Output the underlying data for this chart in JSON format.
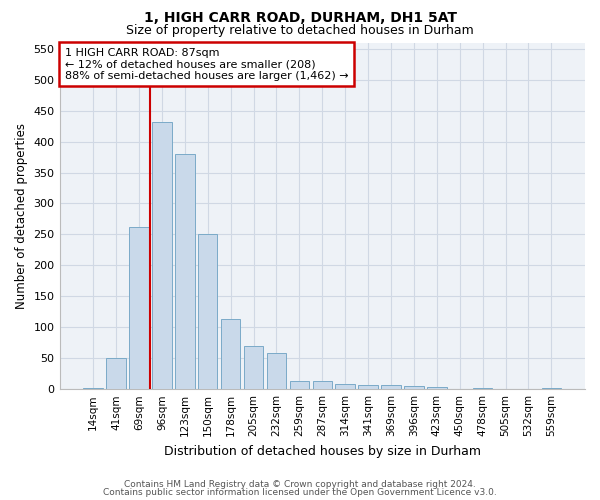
{
  "title1": "1, HIGH CARR ROAD, DURHAM, DH1 5AT",
  "title2": "Size of property relative to detached houses in Durham",
  "xlabel": "Distribution of detached houses by size in Durham",
  "ylabel": "Number of detached properties",
  "categories": [
    "14sqm",
    "41sqm",
    "69sqm",
    "96sqm",
    "123sqm",
    "150sqm",
    "178sqm",
    "205sqm",
    "232sqm",
    "259sqm",
    "287sqm",
    "314sqm",
    "341sqm",
    "369sqm",
    "396sqm",
    "423sqm",
    "450sqm",
    "478sqm",
    "505sqm",
    "532sqm",
    "559sqm"
  ],
  "bar_values": [
    2,
    50,
    262,
    432,
    380,
    250,
    113,
    70,
    59,
    13,
    13,
    8,
    7,
    7,
    5,
    3,
    0,
    2,
    0,
    0,
    2
  ],
  "bar_color": "#c9d9ea",
  "bar_edge_color": "#7aaac8",
  "ylim": [
    0,
    560
  ],
  "yticks": [
    0,
    50,
    100,
    150,
    200,
    250,
    300,
    350,
    400,
    450,
    500,
    550
  ],
  "vline_color": "#cc0000",
  "annotation_line1": "1 HIGH CARR ROAD: 87sqm",
  "annotation_line2": "← 12% of detached houses are smaller (208)",
  "annotation_line3": "88% of semi-detached houses are larger (1,462) →",
  "annotation_box_color": "#cc0000",
  "footer1": "Contains HM Land Registry data © Crown copyright and database right 2024.",
  "footer2": "Contains public sector information licensed under the Open Government Licence v3.0.",
  "background_color": "#ffffff",
  "plot_bg_color": "#eef2f7",
  "grid_color": "#d0d8e4",
  "title1_fontsize": 10,
  "title2_fontsize": 9
}
